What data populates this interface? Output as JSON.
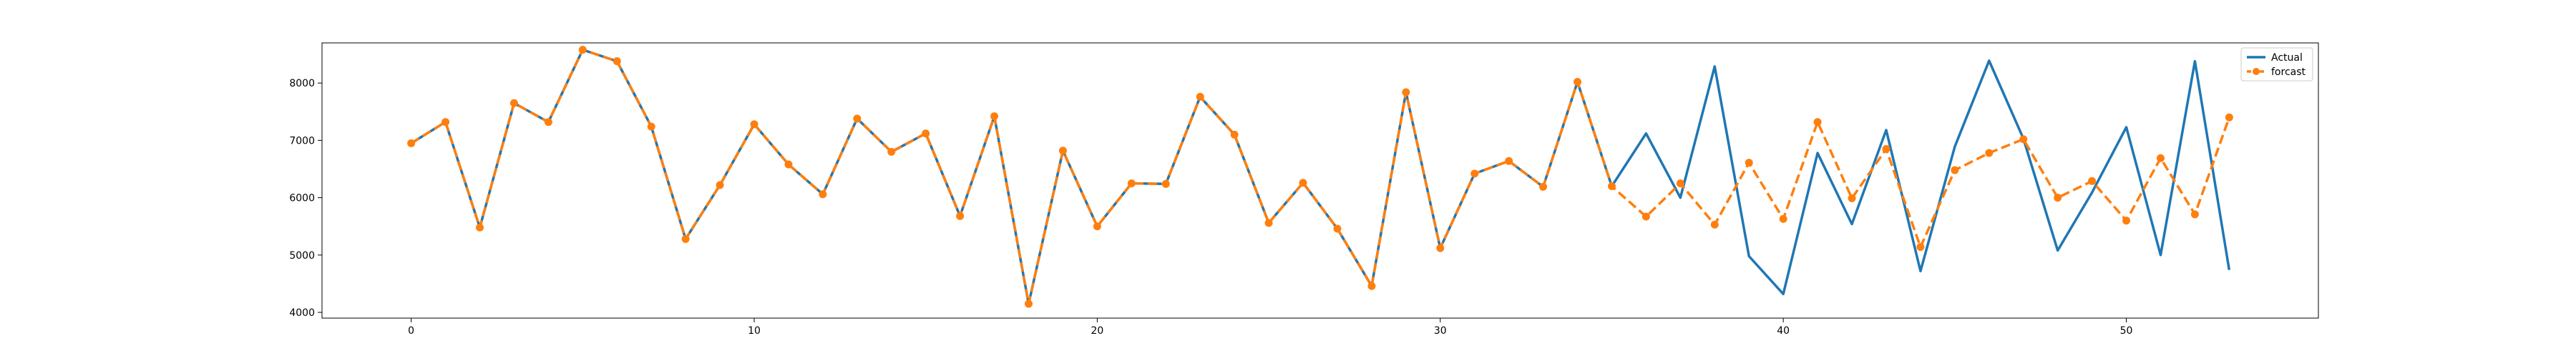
{
  "chart_data": {
    "type": "line",
    "title": "",
    "xlabel": "",
    "ylabel": "",
    "xlim": [
      -2.6,
      55.6
    ],
    "ylim": [
      3900,
      8700
    ],
    "x_ticks": [
      0,
      10,
      20,
      30,
      40,
      50
    ],
    "y_ticks": [
      4000,
      5000,
      6000,
      7000,
      8000
    ],
    "x_tick_labels": [
      "0",
      "10",
      "20",
      "30",
      "40",
      "50"
    ],
    "y_tick_labels": [
      "4000",
      "5000",
      "6000",
      "7000",
      "8000"
    ],
    "grid": false,
    "legend_position": "top-right",
    "series": [
      {
        "name": "Actual",
        "color": "#1f77b4",
        "style": "solid",
        "marker": "none",
        "x": [
          0,
          1,
          2,
          3,
          4,
          5,
          6,
          7,
          8,
          9,
          10,
          11,
          12,
          13,
          14,
          15,
          16,
          17,
          18,
          19,
          20,
          21,
          22,
          23,
          24,
          25,
          26,
          27,
          28,
          29,
          30,
          31,
          32,
          33,
          34,
          35,
          36,
          37,
          38,
          39,
          40,
          41,
          42,
          43,
          44,
          45,
          46,
          47,
          48,
          49,
          50,
          51,
          52,
          53
        ],
        "values": [
          6950,
          7320,
          5480,
          7650,
          7320,
          8580,
          8380,
          7240,
          5280,
          6220,
          7280,
          6580,
          6060,
          7380,
          6800,
          7120,
          5680,
          7420,
          4150,
          6820,
          5500,
          6250,
          6240,
          7760,
          7100,
          5560,
          6260,
          5460,
          4460,
          7840,
          5120,
          6420,
          6640,
          6190,
          8020,
          6200,
          7120,
          6000,
          8290,
          4980,
          4320,
          6780,
          5540,
          7180,
          4720,
          6890,
          8390,
          7030,
          5080,
          6090,
          7230,
          5000,
          8380,
          4740
        ]
      },
      {
        "name": "forcast",
        "color": "#ff7f0e",
        "style": "dashed",
        "marker": "circle",
        "x": [
          0,
          1,
          2,
          3,
          4,
          5,
          6,
          7,
          8,
          9,
          10,
          11,
          12,
          13,
          14,
          15,
          16,
          17,
          18,
          19,
          20,
          21,
          22,
          23,
          24,
          25,
          26,
          27,
          28,
          29,
          30,
          31,
          32,
          33,
          34,
          35,
          36,
          37,
          38,
          39,
          40,
          41,
          42,
          43,
          44,
          45,
          46,
          47,
          48,
          49,
          50,
          51,
          52,
          53
        ],
        "values": [
          6950,
          7320,
          5480,
          7650,
          7320,
          8580,
          8380,
          7240,
          5280,
          6220,
          7280,
          6580,
          6060,
          7380,
          6800,
          7120,
          5680,
          7420,
          4150,
          6820,
          5500,
          6250,
          6240,
          7760,
          7100,
          5560,
          6260,
          5460,
          4460,
          7840,
          5120,
          6420,
          6640,
          6190,
          8020,
          6200,
          5670,
          6250,
          5530,
          6610,
          5630,
          7320,
          5990,
          6850,
          5140,
          6480,
          6780,
          7020,
          6000,
          6290,
          5600,
          6690,
          5710,
          7400
        ]
      }
    ]
  }
}
